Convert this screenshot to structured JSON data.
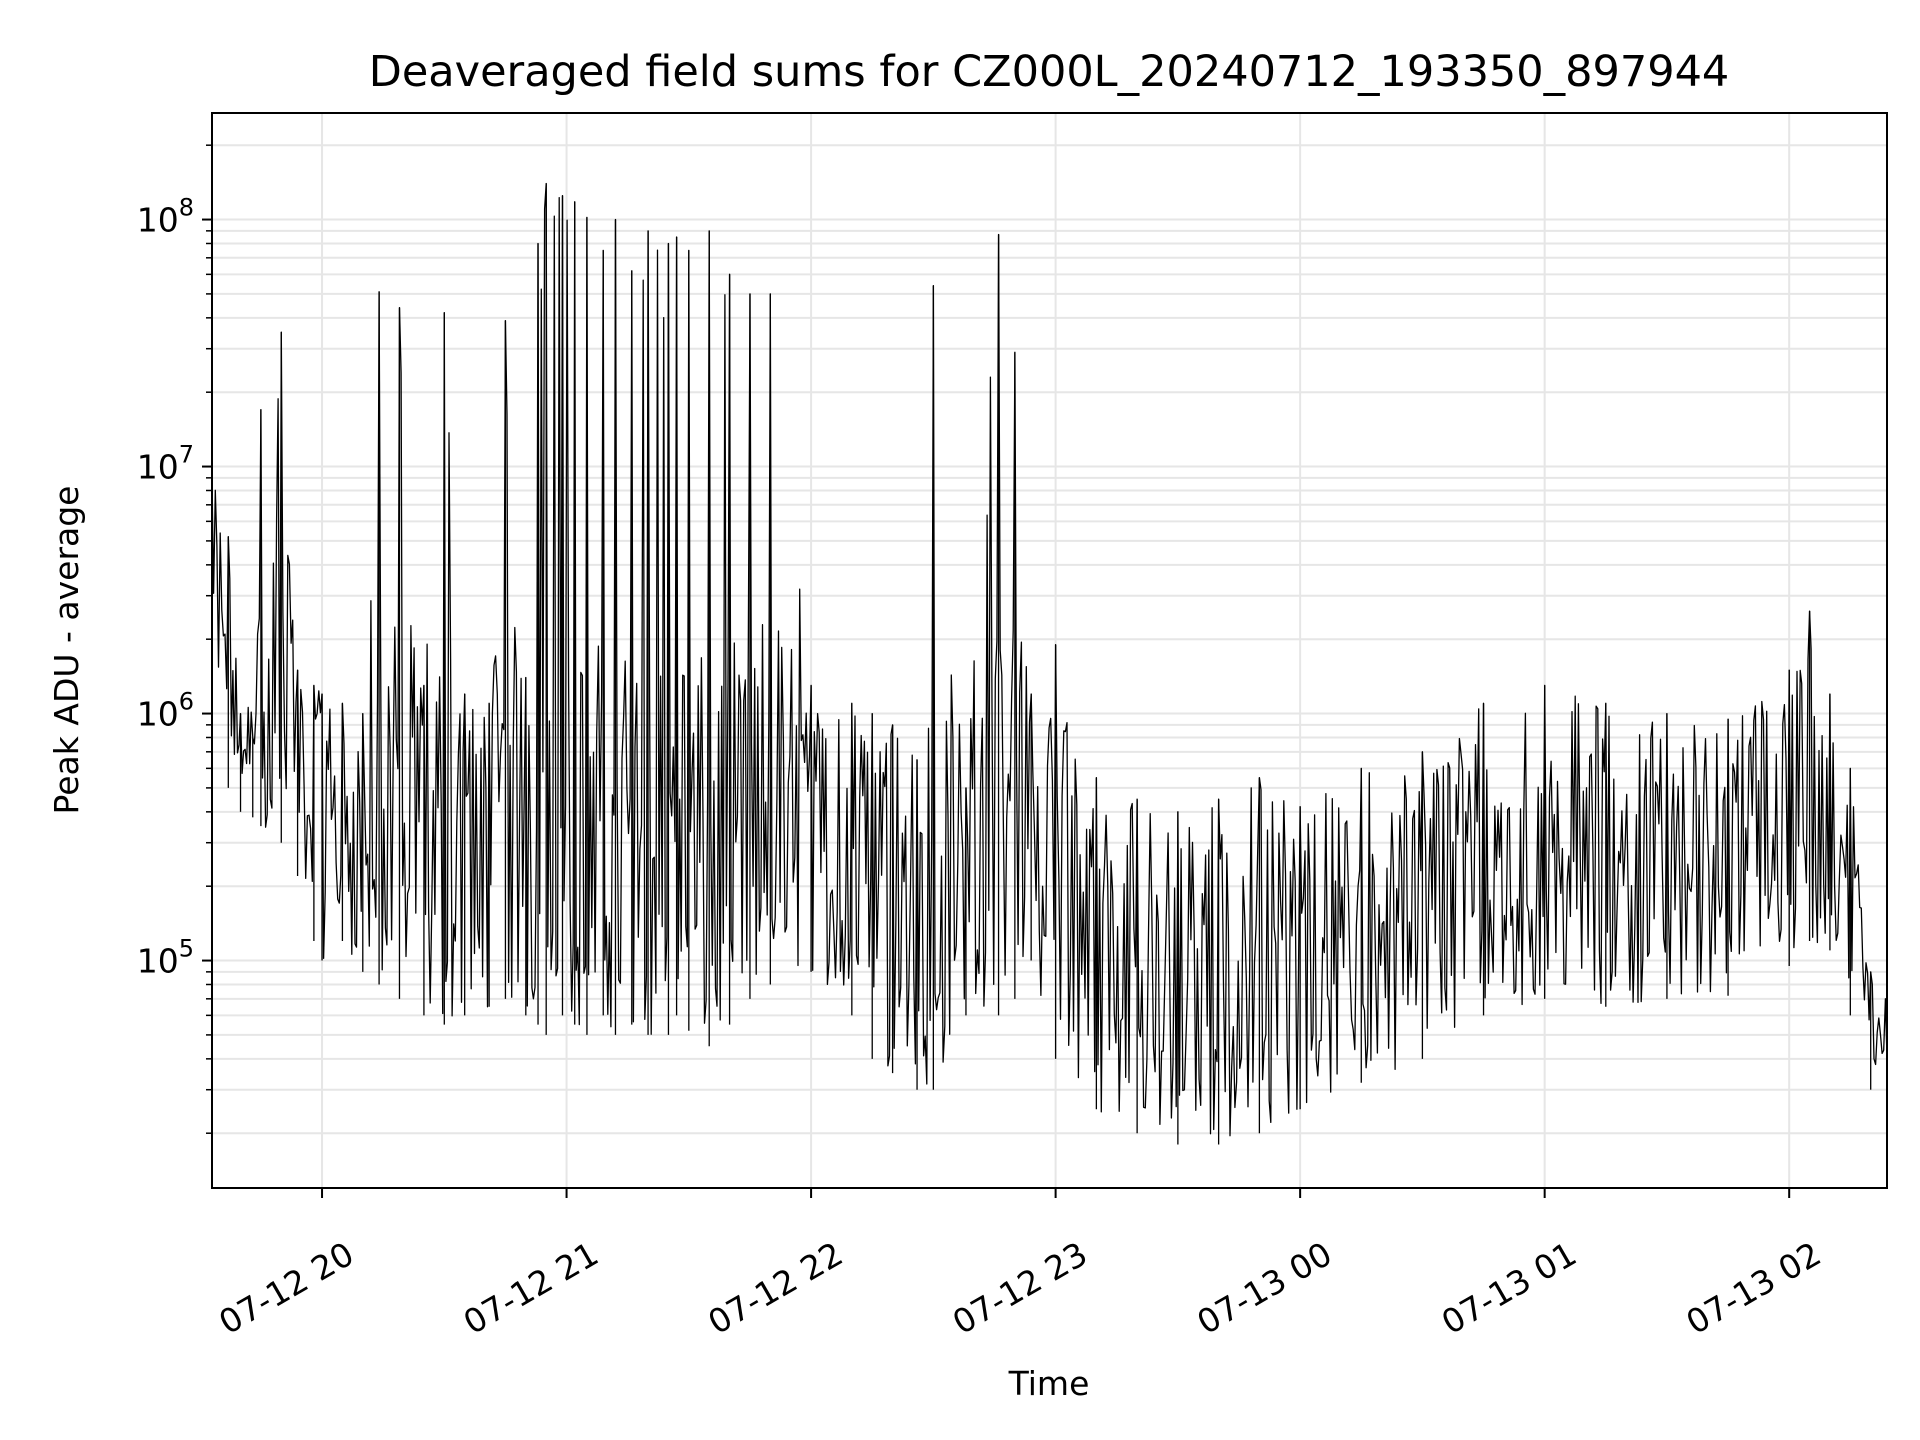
{
  "chart_data": {
    "type": "line",
    "title": "Deaveraged field sums for CZ000L_20240712_193350_897944",
    "xlabel": "Time",
    "ylabel": "Peak ADU - average",
    "y_scale": "log",
    "ylim": [
      12000,
      270000000
    ],
    "xlim": [
      "2024-07-12 19:33",
      "2024-07-13 02:24"
    ],
    "grid": "on (major and minor)",
    "line_color": "#000000",
    "grid_color": "#e6e6e6",
    "x_ticks": [
      {
        "label": "07-12 20",
        "value": "2024-07-12 20:00"
      },
      {
        "label": "07-12 21",
        "value": "2024-07-12 21:00"
      },
      {
        "label": "07-12 22",
        "value": "2024-07-12 22:00"
      },
      {
        "label": "07-12 23",
        "value": "2024-07-12 23:00"
      },
      {
        "label": "07-13 00",
        "value": "2024-07-13 00:00"
      },
      {
        "label": "07-13 01",
        "value": "2024-07-13 01:00"
      },
      {
        "label": "07-13 02",
        "value": "2024-07-13 02:00"
      }
    ],
    "y_ticks": [
      {
        "base": "10",
        "exp": "5",
        "value": 100000
      },
      {
        "base": "10",
        "exp": "6",
        "value": 1000000
      },
      {
        "base": "10",
        "exp": "7",
        "value": 10000000
      },
      {
        "base": "10",
        "exp": "8",
        "value": 100000000
      }
    ],
    "series": [
      {
        "time": [
          "2024-07-12 19:33",
          "2024-07-12 19:37",
          "2024-07-12 19:40",
          "2024-07-12 19:43",
          "2024-07-12 19:45",
          "2024-07-12 19:50",
          "2024-07-12 19:54",
          "2024-07-12 19:58",
          "2024-07-12 20:00",
          "2024-07-12 20:05",
          "2024-07-12 20:10",
          "2024-07-12 20:14",
          "2024-07-12 20:19",
          "2024-07-12 20:25",
          "2024-07-12 20:30",
          "2024-07-12 20:35",
          "2024-07-12 20:41",
          "2024-07-12 20:45",
          "2024-07-12 20:50",
          "2024-07-12 20:53",
          "2024-07-12 20:55",
          "2024-07-12 20:59",
          "2024-07-12 21:02",
          "2024-07-12 21:05",
          "2024-07-12 21:09",
          "2024-07-12 21:12",
          "2024-07-12 21:16",
          "2024-07-12 21:20",
          "2024-07-12 21:25",
          "2024-07-12 21:27",
          "2024-07-12 21:30",
          "2024-07-12 21:35",
          "2024-07-12 21:40",
          "2024-07-12 21:45",
          "2024-07-12 21:50",
          "2024-07-12 22:00",
          "2024-07-12 22:10",
          "2024-07-12 22:15",
          "2024-07-12 22:20",
          "2024-07-12 22:26",
          "2024-07-12 22:30",
          "2024-07-12 22:38",
          "2024-07-12 22:46",
          "2024-07-12 22:50",
          "2024-07-12 22:54",
          "2024-07-12 23:00",
          "2024-07-12 23:10",
          "2024-07-12 23:20",
          "2024-07-12 23:30",
          "2024-07-12 23:40",
          "2024-07-12 23:50",
          "2024-07-13 00:00",
          "2024-07-13 00:15",
          "2024-07-13 00:30",
          "2024-07-13 00:45",
          "2024-07-13 01:00",
          "2024-07-13 01:15",
          "2024-07-13 01:30",
          "2024-07-13 01:45",
          "2024-07-13 02:00",
          "2024-07-13 02:05",
          "2024-07-13 02:10",
          "2024-07-13 02:15",
          "2024-07-13 02:20",
          "2024-07-13 02:24"
        ],
        "values": [
          9000000,
          5200000,
          1000000,
          800000,
          17000000,
          35000000,
          1500000,
          1300000,
          1200000,
          1100000,
          1000000,
          51000000,
          44000000,
          1300000,
          42000000,
          1200000,
          1100000,
          39000000,
          1400000,
          80000000,
          140000000,
          125000000,
          118000000,
          102000000,
          75000000,
          100000000,
          62000000,
          90000000,
          80000000,
          85000000,
          75000000,
          90000000,
          60000000,
          50000000,
          50000000,
          1300000,
          1100000,
          1000000,
          900000,
          650000,
          54000000,
          500000,
          87000000,
          29000000,
          1200000,
          1900000,
          550000,
          450000,
          400000,
          450000,
          550000,
          420000,
          600000,
          700000,
          1100000,
          1300000,
          1100000,
          1000000,
          950000,
          1500000,
          2600000,
          1200000,
          600000,
          90000,
          40000
        ],
        "lows": [
          600000,
          500000,
          400000,
          380000,
          350000,
          300000,
          220000,
          120000,
          100000,
          120000,
          90000,
          80000,
          70000,
          60000,
          55000,
          60000,
          65000,
          70000,
          60000,
          55000,
          50000,
          60000,
          55000,
          50000,
          60000,
          50000,
          55000,
          50000,
          50000,
          60000,
          52000,
          45000,
          55000,
          70000,
          80000,
          90000,
          60000,
          40000,
          35000,
          30000,
          30000,
          60000,
          60000,
          70000,
          100000,
          40000,
          25000,
          20000,
          18000,
          18000,
          20000,
          25000,
          32000,
          40000,
          60000,
          70000,
          65000,
          70000,
          72000,
          95000,
          120000,
          110000,
          60000,
          30000,
          28000
        ]
      }
    ]
  }
}
